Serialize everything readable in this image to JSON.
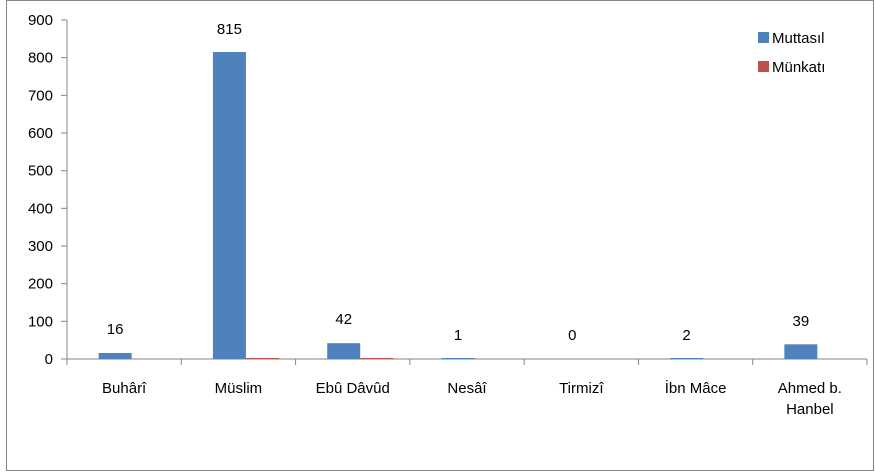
{
  "chart_data": {
    "type": "bar",
    "title": "",
    "xlabel": "",
    "ylabel": "",
    "categories": [
      "Buhârî",
      "Müslim",
      "Ebû Dâvûd",
      "Nesâî",
      "Tirmizî",
      "İbn Mâce",
      [
        "Ahmed b.",
        "Hanbel"
      ]
    ],
    "series": [
      {
        "name": "Muttasıl",
        "color": "#4F81BD",
        "values": [
          16,
          815,
          42,
          1,
          0,
          2,
          39
        ]
      },
      {
        "name": "Münkatı",
        "color": "#C0504D",
        "values": [
          0,
          2,
          1,
          0,
          0,
          0,
          0
        ]
      }
    ],
    "data_labels": [
      "16",
      "815",
      "42",
      "1",
      "0",
      "2",
      "39"
    ],
    "ylim": [
      0,
      900
    ],
    "yticks": [
      0,
      100,
      200,
      300,
      400,
      500,
      600,
      700,
      800,
      900
    ],
    "legend_position": "top-right",
    "grid": false
  }
}
